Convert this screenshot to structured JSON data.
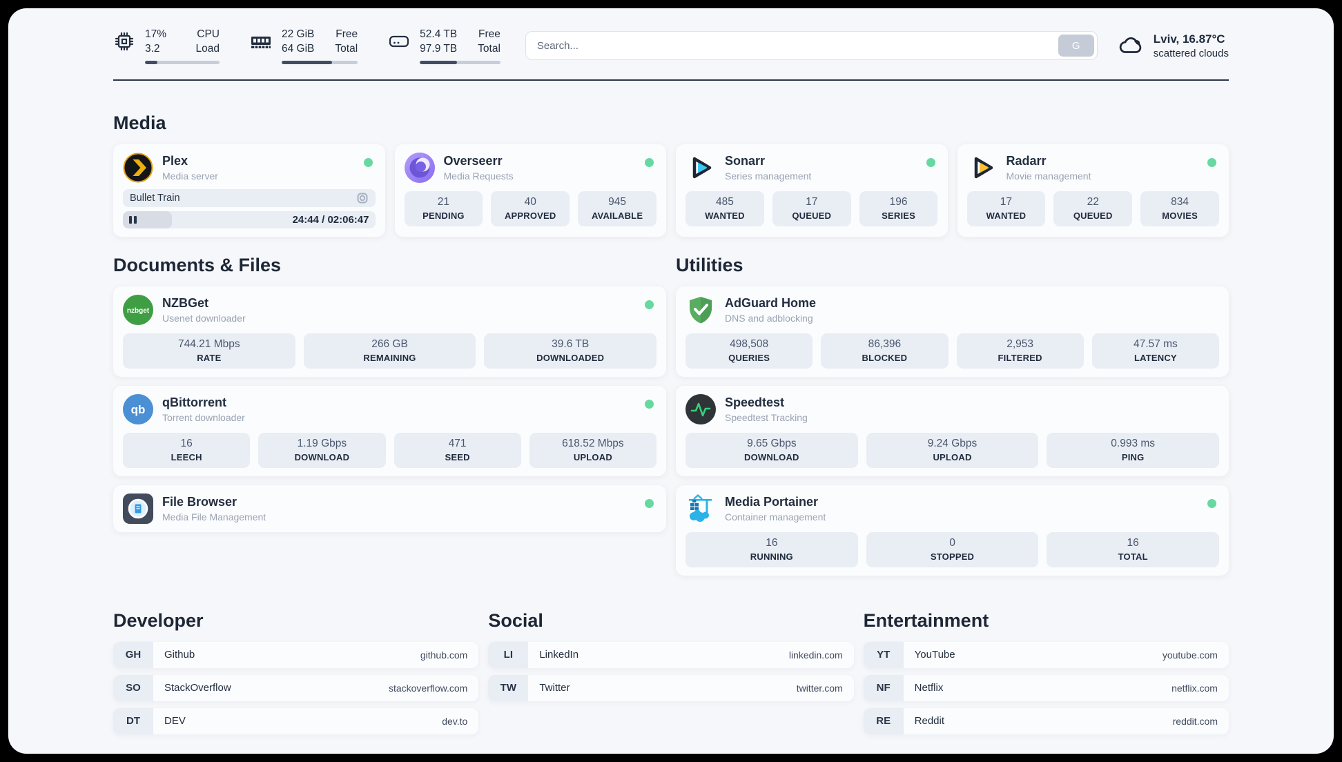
{
  "colors": {
    "status_online": "#67d9a0",
    "page_bg": "#f6f7fa",
    "tile_bg": "#e9edf4",
    "text_dark": "#222e3f"
  },
  "header": {
    "stats": [
      {
        "icon": "cpu-icon",
        "value_top": "17%",
        "value_bottom": "3.2",
        "label_top": "CPU",
        "label_bottom": "Load",
        "progress_pct": 17
      },
      {
        "icon": "ram-icon",
        "value_top": "22 GiB",
        "value_bottom": "64 GiB",
        "label_top": "Free",
        "label_bottom": "Total",
        "progress_pct": 66
      },
      {
        "icon": "disk-icon",
        "value_top": "52.4 TB",
        "value_bottom": "97.9 TB",
        "label_top": "Free",
        "label_bottom": "Total",
        "progress_pct": 46
      }
    ],
    "search": {
      "placeholder": "Search...",
      "button_label": "G"
    },
    "weather": {
      "location": "Lviv, 16.87°C",
      "condition": "scattered clouds"
    }
  },
  "icons": {
    "nzbget_label": "nzbget",
    "qbittorrent_label": "qb"
  },
  "sections": {
    "media": {
      "title": "Media",
      "apps": {
        "plex": {
          "name": "Plex",
          "subtitle": "Media server",
          "online": true,
          "now_playing": "Bullet Train",
          "time_display": "24:44 / 02:06:47",
          "progress_pct": 19.5
        },
        "overseerr": {
          "name": "Overseerr",
          "subtitle": "Media Requests",
          "online": true,
          "stats": [
            {
              "value": "21",
              "label": "PENDING"
            },
            {
              "value": "40",
              "label": "APPROVED"
            },
            {
              "value": "945",
              "label": "AVAILABLE"
            }
          ]
        },
        "sonarr": {
          "name": "Sonarr",
          "subtitle": "Series management",
          "online": true,
          "stats": [
            {
              "value": "485",
              "label": "WANTED"
            },
            {
              "value": "17",
              "label": "QUEUED"
            },
            {
              "value": "196",
              "label": "SERIES"
            }
          ]
        },
        "radarr": {
          "name": "Radarr",
          "subtitle": "Movie management",
          "online": true,
          "stats": [
            {
              "value": "17",
              "label": "WANTED"
            },
            {
              "value": "22",
              "label": "QUEUED"
            },
            {
              "value": "834",
              "label": "MOVIES"
            }
          ]
        }
      }
    },
    "documents": {
      "title": "Documents & Files",
      "apps": {
        "nzbget": {
          "name": "NZBGet",
          "subtitle": "Usenet downloader",
          "online": true,
          "stats": [
            {
              "value": "744.21 Mbps",
              "label": "RATE"
            },
            {
              "value": "266 GB",
              "label": "REMAINING"
            },
            {
              "value": "39.6 TB",
              "label": "DOWNLOADED"
            }
          ]
        },
        "qbittorrent": {
          "name": "qBittorrent",
          "subtitle": "Torrent downloader",
          "online": true,
          "stats": [
            {
              "value": "16",
              "label": "LEECH"
            },
            {
              "value": "1.19 Gbps",
              "label": "DOWNLOAD"
            },
            {
              "value": "471",
              "label": "SEED"
            },
            {
              "value": "618.52 Mbps",
              "label": "UPLOAD"
            }
          ]
        },
        "filebrowser": {
          "name": "File Browser",
          "subtitle": "Media File Management",
          "online": true
        }
      }
    },
    "utilities": {
      "title": "Utilities",
      "apps": {
        "adguard": {
          "name": "AdGuard Home",
          "subtitle": "DNS and adblocking",
          "stats": [
            {
              "value": "498,508",
              "label": "QUERIES"
            },
            {
              "value": "86,396",
              "label": "BLOCKED"
            },
            {
              "value": "2,953",
              "label": "FILTERED"
            },
            {
              "value": "47.57 ms",
              "label": "LATENCY"
            }
          ]
        },
        "speedtest": {
          "name": "Speedtest",
          "subtitle": "Speedtest Tracking",
          "stats": [
            {
              "value": "9.65 Gbps",
              "label": "DOWNLOAD"
            },
            {
              "value": "9.24 Gbps",
              "label": "UPLOAD"
            },
            {
              "value": "0.993 ms",
              "label": "PING"
            }
          ]
        },
        "portainer": {
          "name": "Media Portainer",
          "subtitle": "Container management",
          "online": true,
          "stats": [
            {
              "value": "16",
              "label": "RUNNING"
            },
            {
              "value": "0",
              "label": "STOPPED"
            },
            {
              "value": "16",
              "label": "TOTAL"
            }
          ]
        }
      }
    },
    "developer": {
      "title": "Developer",
      "links": [
        {
          "abbr": "GH",
          "name": "Github",
          "url": "github.com"
        },
        {
          "abbr": "SO",
          "name": "StackOverflow",
          "url": "stackoverflow.com"
        },
        {
          "abbr": "DT",
          "name": "DEV",
          "url": "dev.to"
        }
      ]
    },
    "social": {
      "title": "Social",
      "links": [
        {
          "abbr": "LI",
          "name": "LinkedIn",
          "url": "linkedin.com"
        },
        {
          "abbr": "TW",
          "name": "Twitter",
          "url": "twitter.com"
        }
      ]
    },
    "entertainment": {
      "title": "Entertainment",
      "links": [
        {
          "abbr": "YT",
          "name": "YouTube",
          "url": "youtube.com"
        },
        {
          "abbr": "NF",
          "name": "Netflix",
          "url": "netflix.com"
        },
        {
          "abbr": "RE",
          "name": "Reddit",
          "url": "reddit.com"
        }
      ]
    }
  }
}
